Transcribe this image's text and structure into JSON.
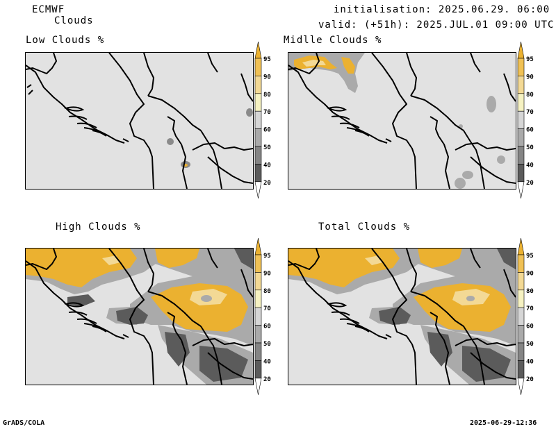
{
  "header": {
    "model": "ECMWF",
    "product": "Clouds",
    "init": "initialisation: 2025.06.29. 06:00 UTC",
    "valid": "valid: (+51h): 2025.JUL.01 09:00 UTC"
  },
  "panels": [
    {
      "title": "Low Clouds %"
    },
    {
      "title": "Midlle Clouds %"
    },
    {
      "title": "High Clouds %"
    },
    {
      "title": "Total Clouds %"
    }
  ],
  "colorbar": {
    "ticks": [
      "95",
      "90",
      "80",
      "70",
      "60",
      "50",
      "40",
      "20"
    ],
    "colors": [
      "#ebb130",
      "#f0c155",
      "#f3d995",
      "#f6f2c2",
      "#d6d6d6",
      "#aaaaaa",
      "#858585",
      "#5b5b5b",
      "#ffffff"
    ]
  },
  "footer": {
    "left": "GrADS/COLA",
    "right": "2025-06-29-12:36"
  }
}
